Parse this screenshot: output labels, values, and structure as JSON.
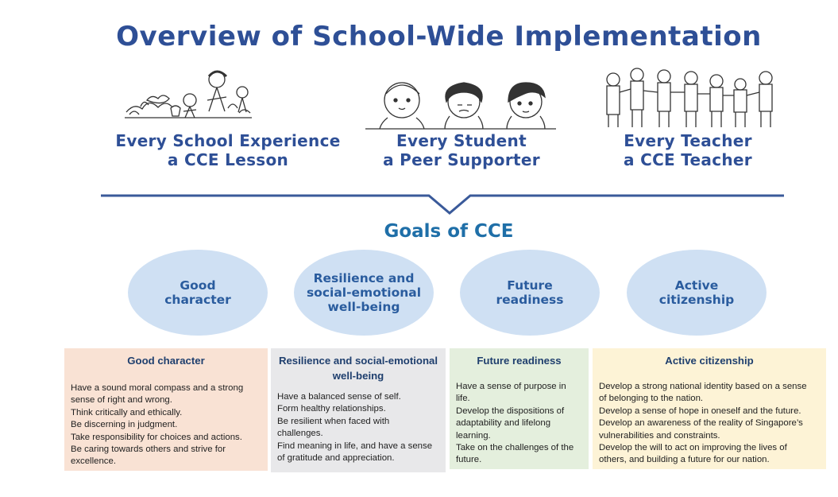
{
  "title": "Overview of School-Wide Implementation",
  "pillars": [
    {
      "line1": "Every School Experience",
      "line2": "a CCE Lesson"
    },
    {
      "line1": "Every Student",
      "line2": "a Peer Supporter"
    },
    {
      "line1": "Every Teacher",
      "line2": "a CCE Teacher"
    }
  ],
  "goals_title": "Goals of CCE",
  "goals": [
    {
      "line1": "Good",
      "line2": "character",
      "line3": ""
    },
    {
      "line1": "Resilience and",
      "line2": "social-emotional",
      "line3": "well-being"
    },
    {
      "line1": "Future",
      "line2": "readiness",
      "line3": ""
    },
    {
      "line1": "Active",
      "line2": "citizenship",
      "line3": ""
    }
  ],
  "boxes": [
    {
      "heading": "Good character",
      "lines": [
        "Have a sound moral compass and a strong",
        "sense of right and wrong.",
        "Think critically and ethically.",
        "Be discerning in judgment.",
        "Take responsibility for choices and actions.",
        "Be caring towards others and strive for",
        "excellence."
      ]
    },
    {
      "heading": "Resilience and social-emotional well-being",
      "lines": [
        "Have a balanced sense of self.",
        "Form healthy relationships.",
        "Be resilient when faced with",
        "challenges.",
        "Find meaning in life, and have a sense",
        "of gratitude and appreciation."
      ]
    },
    {
      "heading": "Future readiness",
      "lines": [
        "Have a sense of purpose in",
        "life.",
        "Develop the dispositions of",
        "adaptability and lifelong",
        "learning.",
        "Take on the challenges of the",
        "future."
      ]
    },
    {
      "heading": "Active citizenship",
      "lines": [
        "Develop a strong national identity based on a sense",
        "of belonging to the nation.",
        "Develop a sense of hope in oneself and the future.",
        "Develop an awareness of the reality of Singapore’s",
        "vulnerabilities and constraints.",
        "Develop the will to act on improving the lives of",
        "others, and building a future for our nation."
      ]
    }
  ],
  "colors": {
    "title": "#2e4f96",
    "divider": "#3a5a9a",
    "goals_title": "#1f6fa8",
    "oval_fill": "#cfe0f3",
    "box1": "#f9e2d4",
    "box2": "#e8e8ea",
    "box3": "#e4efdd",
    "box4": "#fdf3d6"
  }
}
